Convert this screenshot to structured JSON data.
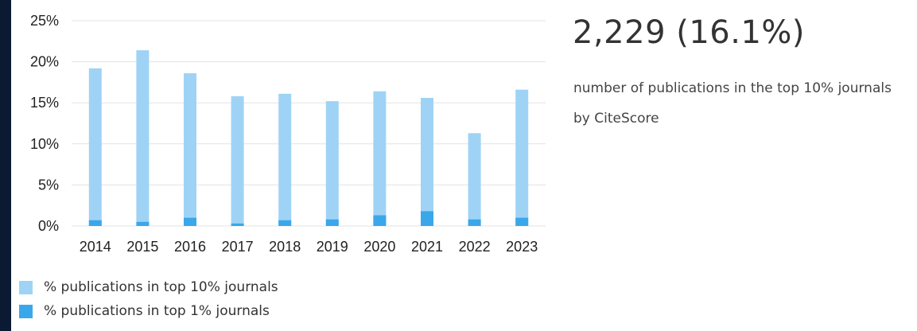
{
  "metric": {
    "value": "2,229 (16.1%)",
    "caption": "number of publications in the top 10% journals by CiteScore"
  },
  "legend": {
    "top10_label": "% publications in top 10% journals",
    "top1_label": "% publications in top 1% journals"
  },
  "colors": {
    "top10": "#9fd3f5",
    "top1": "#3aa7ea",
    "grid": "#e3e3e3",
    "frame": "#0a1a33"
  },
  "chart_data": {
    "type": "bar",
    "categories": [
      "2014",
      "2015",
      "2016",
      "2017",
      "2018",
      "2019",
      "2020",
      "2021",
      "2022",
      "2023"
    ],
    "series": [
      {
        "name": "% publications in top 10% journals",
        "values": [
          19.2,
          21.4,
          18.6,
          15.8,
          16.1,
          15.2,
          16.4,
          15.6,
          11.3,
          16.6
        ]
      },
      {
        "name": "% publications in top 1% journals",
        "values": [
          0.7,
          0.5,
          1.0,
          0.3,
          0.7,
          0.8,
          1.3,
          1.8,
          0.8,
          1.0
        ]
      }
    ],
    "yticks": [
      "0%",
      "5%",
      "10%",
      "15%",
      "20%",
      "25%"
    ],
    "ylim": [
      0,
      25
    ],
    "grid": true,
    "overlay": true,
    "legend_position": "bottom-left"
  }
}
